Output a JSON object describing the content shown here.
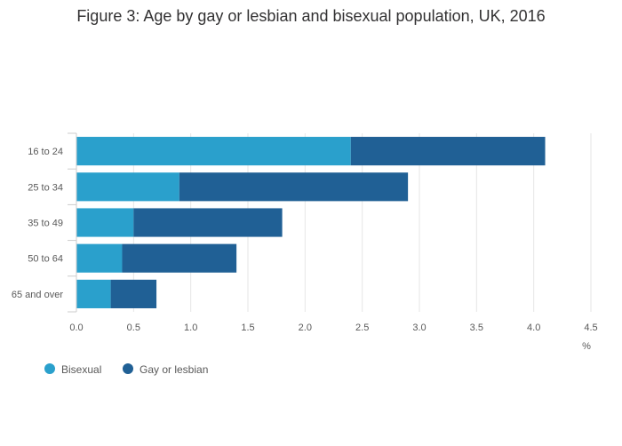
{
  "colors": {
    "bisexual": "#2aa0cc",
    "gay_lesbian": "#206095",
    "grid": "#e6e6e6",
    "axis": "#cccccc"
  },
  "chart_data": {
    "type": "bar",
    "orientation": "horizontal",
    "stacked": true,
    "title": "Figure 3: Age by gay or lesbian and bisexual population, UK, 2016",
    "xlabel": "%",
    "ylabel": "",
    "xlim": [
      0,
      4.5
    ],
    "xticks": [
      "0.0",
      "0.5",
      "1.0",
      "1.5",
      "2.0",
      "2.5",
      "3.0",
      "3.5",
      "4.0",
      "4.5"
    ],
    "grid": true,
    "legend_position": "bottom-left",
    "categories": [
      "16 to 24",
      "25 to 34",
      "35 to 49",
      "50 to 64",
      "65 and over"
    ],
    "series": [
      {
        "name": "Bisexual",
        "values": [
          2.4,
          0.9,
          0.5,
          0.4,
          0.3
        ]
      },
      {
        "name": "Gay or lesbian",
        "values": [
          1.7,
          2.0,
          1.3,
          1.0,
          0.4
        ]
      }
    ]
  }
}
